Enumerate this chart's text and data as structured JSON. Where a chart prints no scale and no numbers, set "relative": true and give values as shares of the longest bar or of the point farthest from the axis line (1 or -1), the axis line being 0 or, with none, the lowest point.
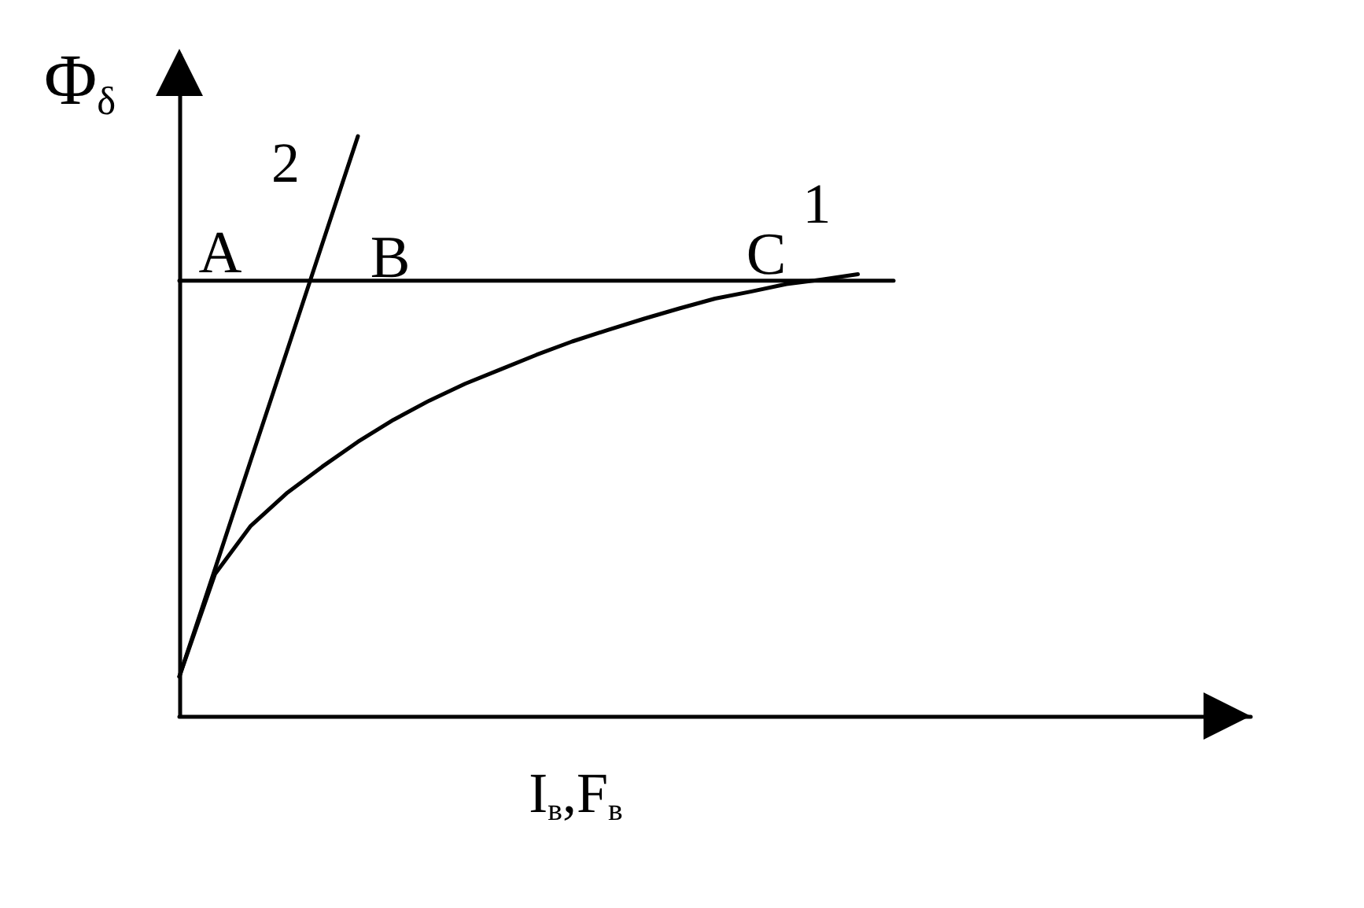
{
  "chart_data": {
    "type": "line",
    "relative": true,
    "xlabel": "I$_{в}$,F$_{в}$",
    "ylabel": "Φ$_{δ}$",
    "tick_labels": false,
    "grid": false,
    "legend": false,
    "marker": "none",
    "line_style": "solid",
    "categories": [
      null,
      null,
      null,
      null,
      null,
      null,
      null,
      null,
      null,
      null,
      null,
      null,
      null,
      null,
      null,
      null,
      null,
      null,
      null,
      null,
      null,
      null,
      null,
      null,
      null,
      null,
      null,
      null,
      null,
      null,
      null
    ],
    "series": [
      {
        "name": "1",
        "color": "#000000",
        "values": [
          0.068,
          0.245,
          0.328,
          0.384,
          0.43,
          0.473,
          0.511,
          0.544,
          0.573,
          0.598,
          0.623,
          0.646,
          0.666,
          0.685,
          0.703,
          0.72,
          0.732,
          0.745,
          0.753,
          0.762,
          null,
          null,
          null,
          null,
          null,
          null,
          null,
          null,
          null,
          null,
          null
        ]
      },
      {
        "name": "2",
        "color": "#000000",
        "values": [
          0.068,
          0.254,
          0.441,
          0.627,
          0.814,
          1.0,
          null,
          null,
          null,
          null,
          null,
          null,
          null,
          null,
          null,
          null,
          null,
          null,
          null,
          null,
          null,
          null,
          null,
          null,
          null,
          null,
          null,
          null,
          null,
          null,
          null
        ]
      },
      {
        "color": "#000000",
        "values": [
          0.751,
          0.751,
          0.751,
          0.751,
          0.751,
          0.751,
          0.751,
          0.751,
          0.751,
          0.751,
          0.751,
          0.751,
          0.751,
          0.751,
          0.751,
          0.751,
          0.751,
          0.751,
          0.751,
          0.751,
          0.751,
          null,
          null,
          null,
          null,
          null,
          null,
          null,
          null,
          null,
          null
        ]
      }
    ],
    "annotations": [
      "A",
      "B",
      "C"
    ]
  }
}
